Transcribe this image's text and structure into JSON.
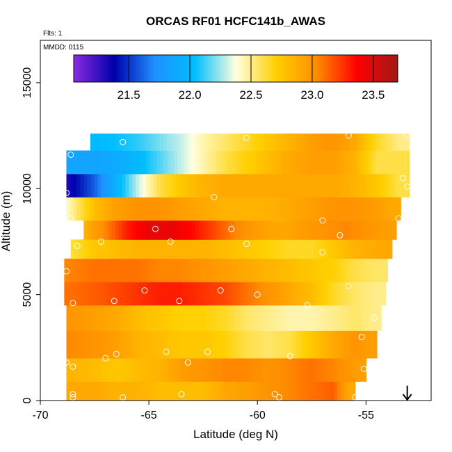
{
  "chart_data": {
    "type": "heatmap",
    "title": "ORCAS RF01 HCFC141b_AWAS",
    "xlabel": "Latitude (deg N)",
    "ylabel": "Altitude (m)",
    "flights_note": "Flts: 1",
    "date_note": "MMDD: 0115",
    "xlim": [
      -70,
      -52
    ],
    "ylim": [
      0,
      17000
    ],
    "x_ticks": [
      -70,
      -65,
      -60,
      -55
    ],
    "x_tick_labels": [
      "-70",
      "-65",
      "-60",
      "-55"
    ],
    "y_ticks": [
      0,
      5000,
      10000,
      15000
    ],
    "y_tick_labels": [
      "0",
      "5000",
      "10000",
      "15000"
    ],
    "colorbar": {
      "range": [
        21.05,
        23.7
      ],
      "ticks": [
        21.5,
        22.0,
        22.5,
        23.0,
        23.5
      ],
      "tick_labels": [
        "21.5",
        "22.0",
        "22.5",
        "23.0",
        "23.5"
      ],
      "colors": [
        "#8a2be2",
        "#0000aa",
        "#1e90ff",
        "#00bfff",
        "#ffffe0",
        "#ffd000",
        "#ff8c00",
        "#ff0000",
        "#a01818"
      ]
    },
    "arrow_marker": {
      "x": -53.1,
      "y_top": 700
    },
    "rows": [
      {
        "y0": 0,
        "y1": 900,
        "x_min": -68.8,
        "x_max": -55.5,
        "cells": [
          [
            -68.8,
            22.9
          ],
          [
            -67.5,
            22.9
          ],
          [
            -66.5,
            22.85
          ],
          [
            -65.5,
            22.85
          ],
          [
            -64.5,
            22.8
          ],
          [
            -63.5,
            22.8
          ],
          [
            -62.5,
            22.8
          ],
          [
            -61.5,
            22.9
          ],
          [
            -60.5,
            22.95
          ],
          [
            -59.5,
            23.0
          ],
          [
            -58.5,
            23.05
          ],
          [
            -57.5,
            23.1
          ],
          [
            -56.5,
            23.15
          ],
          [
            -55.8,
            22.9
          ]
        ]
      },
      {
        "y0": 900,
        "y1": 2000,
        "x_min": -68.8,
        "x_max": -55.0,
        "cells": [
          [
            -68.8,
            22.85
          ],
          [
            -67.5,
            22.8
          ],
          [
            -66.5,
            22.75
          ],
          [
            -65.5,
            22.8
          ],
          [
            -64.5,
            22.85
          ],
          [
            -63.5,
            22.95
          ],
          [
            -62.5,
            23.0
          ],
          [
            -61.5,
            23.05
          ],
          [
            -60.5,
            23.05
          ],
          [
            -59.5,
            23.0
          ],
          [
            -58.5,
            23.05
          ],
          [
            -57.5,
            23.1
          ],
          [
            -56.5,
            23.05
          ],
          [
            -55.3,
            22.95
          ]
        ]
      },
      {
        "y0": 2000,
        "y1": 3300,
        "x_min": -68.8,
        "x_max": -54.5,
        "cells": [
          [
            -68.8,
            23.05
          ],
          [
            -67.5,
            23.0
          ],
          [
            -66.5,
            22.95
          ],
          [
            -65.5,
            22.85
          ],
          [
            -64.5,
            22.8
          ],
          [
            -63.5,
            22.75
          ],
          [
            -62.5,
            22.75
          ],
          [
            -61.5,
            22.7
          ],
          [
            -60.5,
            22.6
          ],
          [
            -59.5,
            22.55
          ],
          [
            -58.5,
            22.6
          ],
          [
            -57.5,
            22.75
          ],
          [
            -56.5,
            22.9
          ],
          [
            -55.5,
            23.0
          ],
          [
            -54.8,
            22.95
          ]
        ]
      },
      {
        "y0": 3300,
        "y1": 4500,
        "x_min": -68.8,
        "x_max": -54.3,
        "cells": [
          [
            -68.8,
            23.0
          ],
          [
            -67.5,
            22.95
          ],
          [
            -66.5,
            22.9
          ],
          [
            -65.5,
            22.8
          ],
          [
            -64.5,
            22.75
          ],
          [
            -63.5,
            22.7
          ],
          [
            -62.5,
            22.7
          ],
          [
            -61.5,
            22.65
          ],
          [
            -60.5,
            22.55
          ],
          [
            -59.5,
            22.5
          ],
          [
            -58.5,
            22.45
          ],
          [
            -57.5,
            22.45
          ],
          [
            -56.5,
            22.5
          ],
          [
            -55.5,
            22.55
          ],
          [
            -54.6,
            22.5
          ]
        ]
      },
      {
        "y0": 4500,
        "y1": 5600,
        "x_min": -68.9,
        "x_max": -54.1,
        "cells": [
          [
            -68.9,
            23.1
          ],
          [
            -67.5,
            23.15
          ],
          [
            -66.5,
            23.2
          ],
          [
            -65.5,
            23.25
          ],
          [
            -64.5,
            23.3
          ],
          [
            -63.5,
            23.3
          ],
          [
            -62.5,
            23.25
          ],
          [
            -61.5,
            23.2
          ],
          [
            -60.5,
            23.1
          ],
          [
            -59.5,
            23.0
          ],
          [
            -58.5,
            22.9
          ],
          [
            -57.5,
            22.8
          ],
          [
            -56.5,
            22.65
          ],
          [
            -55.5,
            22.55
          ],
          [
            -54.5,
            22.5
          ]
        ]
      },
      {
        "y0": 5600,
        "y1": 6700,
        "x_min": -68.9,
        "x_max": -54.0,
        "cells": [
          [
            -68.9,
            23.05
          ],
          [
            -67.5,
            23.1
          ],
          [
            -66.5,
            23.1
          ],
          [
            -65.5,
            23.1
          ],
          [
            -64.5,
            23.05
          ],
          [
            -63.5,
            23.05
          ],
          [
            -62.5,
            23.0
          ],
          [
            -61.5,
            22.95
          ],
          [
            -60.5,
            22.9
          ],
          [
            -59.5,
            22.85
          ],
          [
            -58.5,
            22.8
          ],
          [
            -57.5,
            22.75
          ],
          [
            -56.5,
            22.7
          ],
          [
            -55.5,
            22.6
          ],
          [
            -54.5,
            22.55
          ]
        ]
      },
      {
        "y0": 6700,
        "y1": 7600,
        "x_min": -68.6,
        "x_max": -53.8,
        "cells": [
          [
            -68.6,
            22.6
          ],
          [
            -67.5,
            22.75
          ],
          [
            -66.5,
            22.8
          ],
          [
            -65.5,
            22.85
          ],
          [
            -64.5,
            22.85
          ],
          [
            -63.5,
            22.85
          ],
          [
            -62.5,
            22.85
          ],
          [
            -61.5,
            22.8
          ],
          [
            -60.5,
            22.75
          ],
          [
            -59.5,
            22.7
          ],
          [
            -58.5,
            22.65
          ],
          [
            -57.5,
            22.65
          ],
          [
            -56.5,
            22.75
          ],
          [
            -55.5,
            22.85
          ],
          [
            -54.3,
            22.9
          ]
        ]
      },
      {
        "y0": 7600,
        "y1": 8500,
        "x_min": -68.0,
        "x_max": -53.6,
        "cells": [
          [
            -68.0,
            22.85
          ],
          [
            -67.0,
            23.05
          ],
          [
            -66.0,
            23.3
          ],
          [
            -65.0,
            23.45
          ],
          [
            -64.0,
            23.45
          ],
          [
            -63.0,
            23.35
          ],
          [
            -62.0,
            23.2
          ],
          [
            -61.0,
            23.05
          ],
          [
            -60.0,
            22.95
          ],
          [
            -59.0,
            22.9
          ],
          [
            -58.0,
            22.95
          ],
          [
            -57.0,
            23.0
          ],
          [
            -56.0,
            23.05
          ],
          [
            -55.0,
            23.0
          ],
          [
            -54.0,
            22.95
          ]
        ]
      },
      {
        "y0": 8500,
        "y1": 9600,
        "x_min": -68.8,
        "x_max": -53.4,
        "cells": [
          [
            -68.8,
            22.4
          ],
          [
            -67.5,
            22.8
          ],
          [
            -66.5,
            22.95
          ],
          [
            -65.5,
            23.0
          ],
          [
            -64.5,
            23.0
          ],
          [
            -63.5,
            22.95
          ],
          [
            -62.5,
            22.9
          ],
          [
            -61.5,
            22.85
          ],
          [
            -60.5,
            22.85
          ],
          [
            -59.5,
            22.85
          ],
          [
            -58.5,
            22.9
          ],
          [
            -57.5,
            22.95
          ],
          [
            -56.5,
            23.0
          ],
          [
            -55.5,
            23.0
          ],
          [
            -54.5,
            22.95
          ],
          [
            -53.7,
            22.9
          ]
        ]
      },
      {
        "y0": 9600,
        "y1": 10700,
        "x_min": -68.8,
        "x_max": -53.0,
        "cells": [
          [
            -68.8,
            21.3
          ],
          [
            -67.5,
            21.6
          ],
          [
            -66.5,
            21.95
          ],
          [
            -65.5,
            22.3
          ],
          [
            -64.5,
            22.6
          ],
          [
            -63.5,
            22.75
          ],
          [
            -62.5,
            22.85
          ],
          [
            -61.5,
            22.9
          ],
          [
            -60.5,
            22.9
          ],
          [
            -59.5,
            22.9
          ],
          [
            -58.5,
            22.9
          ],
          [
            -57.5,
            22.9
          ],
          [
            -56.5,
            22.9
          ],
          [
            -55.5,
            22.85
          ],
          [
            -54.5,
            22.75
          ],
          [
            -53.5,
            22.6
          ]
        ]
      },
      {
        "y0": 10700,
        "y1": 11800,
        "x_min": -68.8,
        "x_max": -53.0,
        "cells": [
          [
            -68.8,
            21.85
          ],
          [
            -67.5,
            21.85
          ],
          [
            -66.5,
            21.9
          ],
          [
            -65.5,
            22.0
          ],
          [
            -64.5,
            22.15
          ],
          [
            -63.5,
            22.3
          ],
          [
            -62.5,
            22.45
          ],
          [
            -61.5,
            22.6
          ],
          [
            -60.5,
            22.7
          ],
          [
            -59.5,
            22.8
          ],
          [
            -58.5,
            22.9
          ],
          [
            -57.5,
            22.95
          ],
          [
            -56.5,
            22.95
          ],
          [
            -55.5,
            22.85
          ],
          [
            -54.5,
            22.6
          ],
          [
            -53.5,
            22.6
          ]
        ]
      },
      {
        "y0": 11800,
        "y1": 12600,
        "x_min": -67.7,
        "x_max": -53.0,
        "cells": [
          [
            -67.7,
            22.0
          ],
          [
            -66.5,
            22.05
          ],
          [
            -65.5,
            22.1
          ],
          [
            -64.5,
            22.2
          ],
          [
            -63.5,
            22.3
          ],
          [
            -62.5,
            22.45
          ],
          [
            -61.5,
            22.55
          ],
          [
            -60.5,
            22.65
          ],
          [
            -59.5,
            22.75
          ],
          [
            -58.5,
            22.85
          ],
          [
            -57.5,
            22.95
          ],
          [
            -56.5,
            23.0
          ],
          [
            -55.5,
            22.9
          ],
          [
            -54.5,
            22.65
          ],
          [
            -53.4,
            22.5
          ]
        ]
      }
    ],
    "sample_points": [
      {
        "x": -68.8,
        "y": 9800
      },
      {
        "x": -68.6,
        "y": 11600
      },
      {
        "x": -66.2,
        "y": 12200
      },
      {
        "x": -60.5,
        "y": 12400
      },
      {
        "x": -55.8,
        "y": 12500
      },
      {
        "x": -53.1,
        "y": 12500
      },
      {
        "x": -53.3,
        "y": 10500
      },
      {
        "x": -53.1,
        "y": 10100
      },
      {
        "x": -62.0,
        "y": 9600
      },
      {
        "x": -53.5,
        "y": 8600
      },
      {
        "x": -57.0,
        "y": 8500
      },
      {
        "x": -68.6,
        "y": 8600
      },
      {
        "x": -64.7,
        "y": 8100
      },
      {
        "x": -61.2,
        "y": 8100
      },
      {
        "x": -56.2,
        "y": 7800
      },
      {
        "x": -67.2,
        "y": 7500
      },
      {
        "x": -64.0,
        "y": 7500
      },
      {
        "x": -60.5,
        "y": 7400
      },
      {
        "x": -68.3,
        "y": 7300
      },
      {
        "x": -57.0,
        "y": 7000
      },
      {
        "x": -68.8,
        "y": 6100
      },
      {
        "x": -55.8,
        "y": 5400
      },
      {
        "x": -65.2,
        "y": 5200
      },
      {
        "x": -61.7,
        "y": 5200
      },
      {
        "x": -60.0,
        "y": 5000
      },
      {
        "x": -66.6,
        "y": 4700
      },
      {
        "x": -63.6,
        "y": 4700
      },
      {
        "x": -68.5,
        "y": 4600
      },
      {
        "x": -57.7,
        "y": 4500
      },
      {
        "x": -54.6,
        "y": 3900
      },
      {
        "x": -55.2,
        "y": 3000
      },
      {
        "x": -64.2,
        "y": 2300
      },
      {
        "x": -66.5,
        "y": 2200
      },
      {
        "x": -62.3,
        "y": 2300
      },
      {
        "x": -58.5,
        "y": 2100
      },
      {
        "x": -67.0,
        "y": 2000
      },
      {
        "x": -68.8,
        "y": 1800
      },
      {
        "x": -63.2,
        "y": 1800
      },
      {
        "x": -68.5,
        "y": 1600
      },
      {
        "x": -55.1,
        "y": 1500
      },
      {
        "x": -68.5,
        "y": 300
      },
      {
        "x": -63.5,
        "y": 300
      },
      {
        "x": -59.2,
        "y": 300
      },
      {
        "x": -68.5,
        "y": 150
      },
      {
        "x": -66.2,
        "y": 150
      },
      {
        "x": -59.0,
        "y": 150
      },
      {
        "x": -55.5,
        "y": 150
      }
    ]
  }
}
